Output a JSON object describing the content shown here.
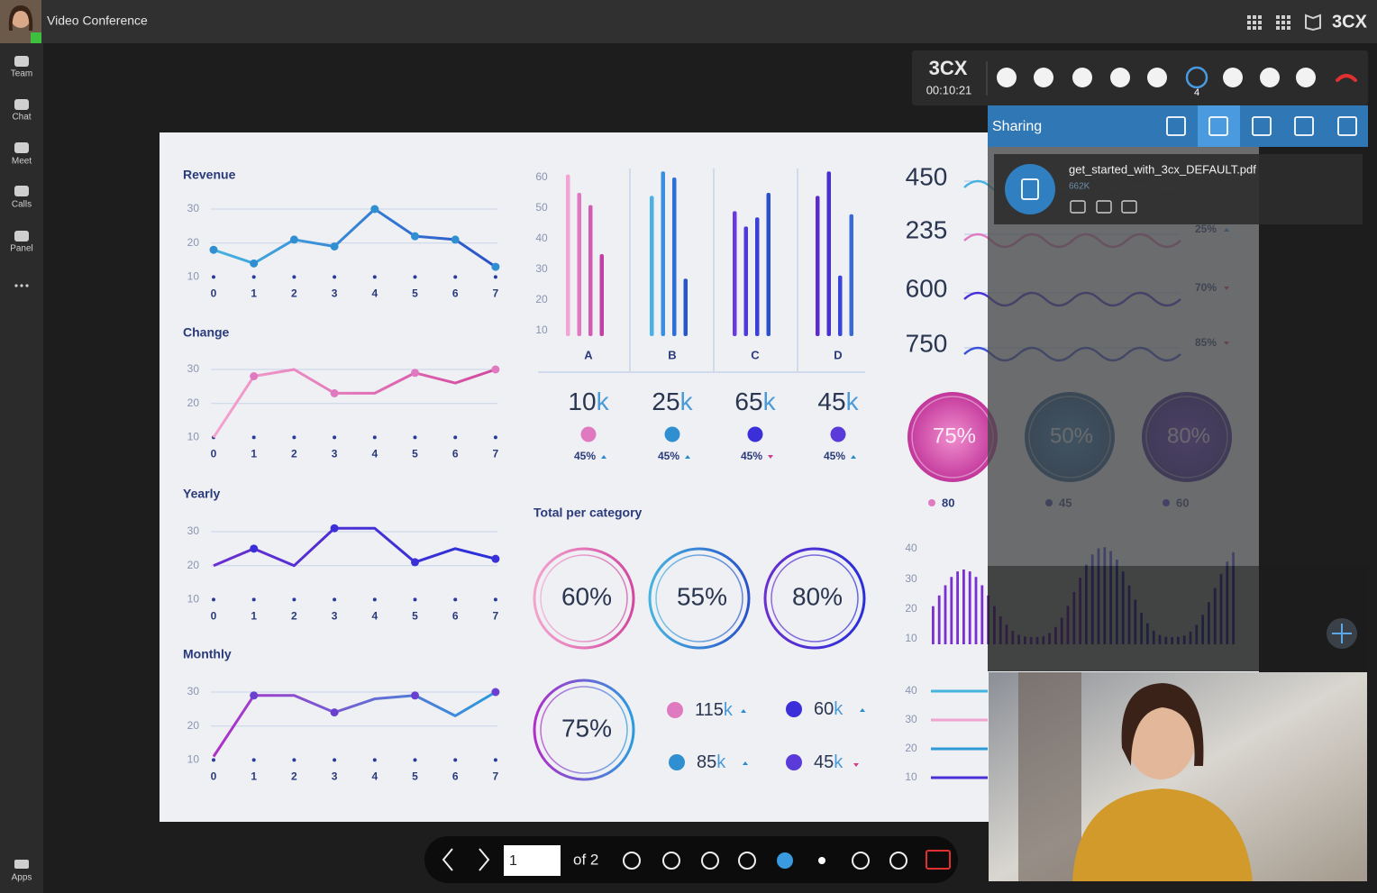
{
  "app": {
    "title": "Video Conference",
    "brand": "3CX"
  },
  "sidebar": {
    "items": [
      "Team",
      "Chat",
      "Meet",
      "Calls",
      "Panel"
    ],
    "apps": "Apps"
  },
  "call": {
    "brand": "3CX",
    "timer": "00:10:21",
    "participants": "4"
  },
  "sharing": {
    "title": "Sharing",
    "file": {
      "name": "get_started_with_3cx_DEFAULT.pdf",
      "size": "662K"
    }
  },
  "pager": {
    "page": "1",
    "of": "of 2"
  },
  "dashboard": {
    "line_charts": [
      {
        "title": "Revenue",
        "x": [
          0,
          1,
          2,
          3,
          4,
          5,
          6,
          7
        ],
        "yticks": [
          10,
          20,
          30
        ],
        "values": [
          18,
          14,
          21,
          19,
          30,
          22,
          21,
          13
        ]
      },
      {
        "title": "Change",
        "x": [
          0,
          1,
          2,
          3,
          4,
          5,
          6,
          7
        ],
        "yticks": [
          10,
          20,
          30
        ],
        "values": [
          10,
          28,
          30,
          23,
          23,
          29,
          26,
          30
        ]
      },
      {
        "title": "Yearly",
        "x": [
          0,
          1,
          2,
          3,
          4,
          5,
          6,
          7
        ],
        "yticks": [
          10,
          20,
          30
        ],
        "values": [
          20,
          25,
          20,
          31,
          31,
          21,
          25,
          22
        ]
      },
      {
        "title": "Monthly",
        "x": [
          0,
          1,
          2,
          3,
          4,
          5,
          6,
          7
        ],
        "yticks": [
          10,
          20,
          30
        ],
        "values": [
          11,
          29,
          29,
          24,
          28,
          29,
          23,
          30
        ]
      }
    ],
    "bar_chart": {
      "yticks": [
        10,
        20,
        30,
        40,
        50,
        60
      ],
      "categories": [
        "A",
        "B",
        "C",
        "D"
      ],
      "values": [
        [
          61,
          55,
          51,
          35
        ],
        [
          54,
          62,
          60,
          27
        ],
        [
          49,
          44,
          47,
          55
        ],
        [
          54,
          62,
          28,
          48
        ]
      ]
    },
    "kpis": [
      {
        "value": "10",
        "unit": "k",
        "change": "45%"
      },
      {
        "value": "25",
        "unit": "k",
        "change": "45%"
      },
      {
        "value": "65",
        "unit": "k",
        "change": "45%"
      },
      {
        "value": "45",
        "unit": "k",
        "change": "45%"
      }
    ],
    "total_title": "Total per category",
    "rings": [
      "60%",
      "55%",
      "80%",
      "75%"
    ],
    "totals": [
      {
        "value": "115",
        "unit": "k"
      },
      {
        "value": "60",
        "unit": "k"
      },
      {
        "value": "85",
        "unit": "k"
      },
      {
        "value": "45",
        "unit": "k"
      }
    ],
    "right_numbers": [
      "450",
      "235",
      "600",
      "750"
    ],
    "right_changes": [
      "25%",
      "70%",
      "85%"
    ],
    "donuts": [
      {
        "label": "75%",
        "note": "80"
      },
      {
        "label": "50%",
        "note": "45"
      },
      {
        "label": "80%",
        "note": "60"
      }
    ],
    "histogram_ticks": [
      40,
      30,
      20,
      10
    ],
    "progress_ticks": [
      40,
      30,
      20,
      10
    ]
  }
}
